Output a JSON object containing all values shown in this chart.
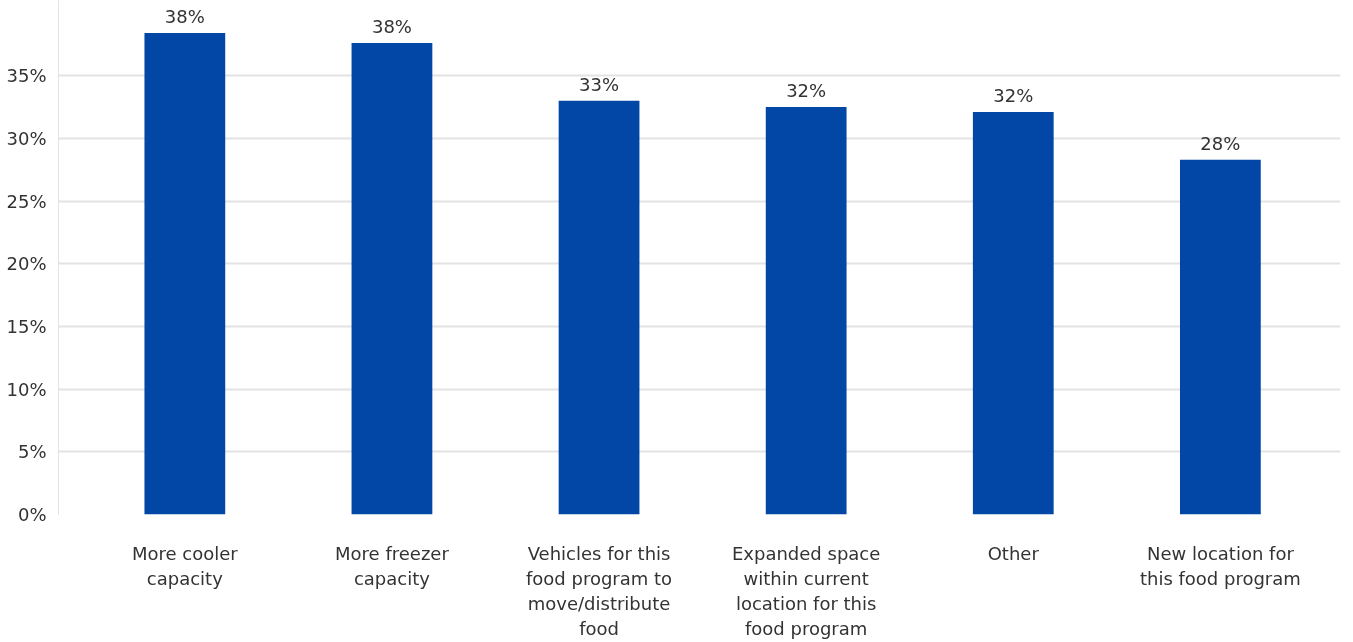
{
  "chart_data": {
    "type": "bar",
    "categories": [
      "More cooler capacity",
      "More freezer capacity",
      "Vehicles for this food program to move/distribute food",
      "Expanded space within current location for this food program",
      "Other",
      "New location for this food program"
    ],
    "values": [
      38.4,
      37.6,
      33.0,
      32.5,
      32.1,
      28.3
    ],
    "color": "#0347a6",
    "value_labels": [
      "38%",
      "38%",
      "33%",
      "32%",
      "32%",
      "28%"
    ],
    "ylim": [
      0,
      41
    ],
    "yticks": [
      {
        "value": 0,
        "label": "0%"
      },
      {
        "value": 5,
        "label": "5%"
      },
      {
        "value": 10,
        "label": "10%"
      },
      {
        "value": 15,
        "label": "15%"
      },
      {
        "value": 20,
        "label": "20%"
      },
      {
        "value": 25,
        "label": "25%"
      },
      {
        "value": 30,
        "label": "30%"
      },
      {
        "value": 35,
        "label": "35%"
      }
    ],
    "grid": "y"
  }
}
